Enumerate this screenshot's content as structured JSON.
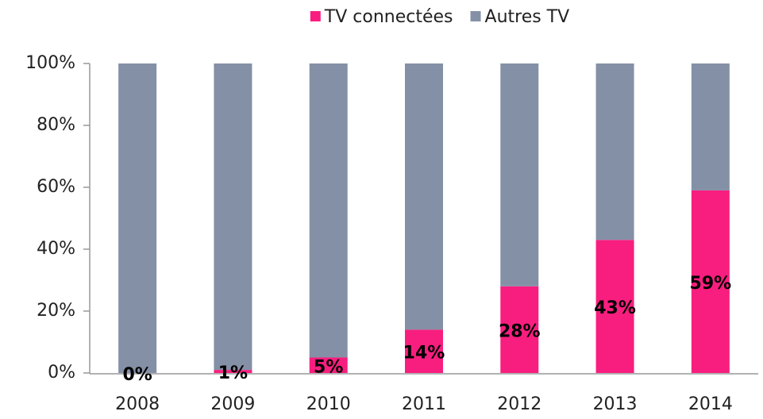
{
  "chart_data": {
    "type": "bar",
    "stacked": true,
    "categories": [
      "2008",
      "2009",
      "2010",
      "2011",
      "2012",
      "2013",
      "2014"
    ],
    "series": [
      {
        "name": "TV connectées",
        "color": "#f81e7f",
        "values": [
          0,
          1,
          5,
          14,
          28,
          43,
          59
        ],
        "value_labels": [
          "0%",
          "1%",
          "5%",
          "14%",
          "28%",
          "43%",
          "59%"
        ]
      },
      {
        "name": "Autres TV",
        "color": "#8490a6",
        "values": [
          100,
          99,
          95,
          86,
          72,
          57,
          41
        ]
      }
    ],
    "ylim": [
      0,
      100
    ],
    "yticks": [
      {
        "value": 0,
        "label": "0%"
      },
      {
        "value": 20,
        "label": "20%"
      },
      {
        "value": 40,
        "label": "40%"
      },
      {
        "value": 60,
        "label": "60%"
      },
      {
        "value": 80,
        "label": "80%"
      },
      {
        "value": 100,
        "label": "100%"
      }
    ],
    "legend": "top",
    "grid": false
  }
}
